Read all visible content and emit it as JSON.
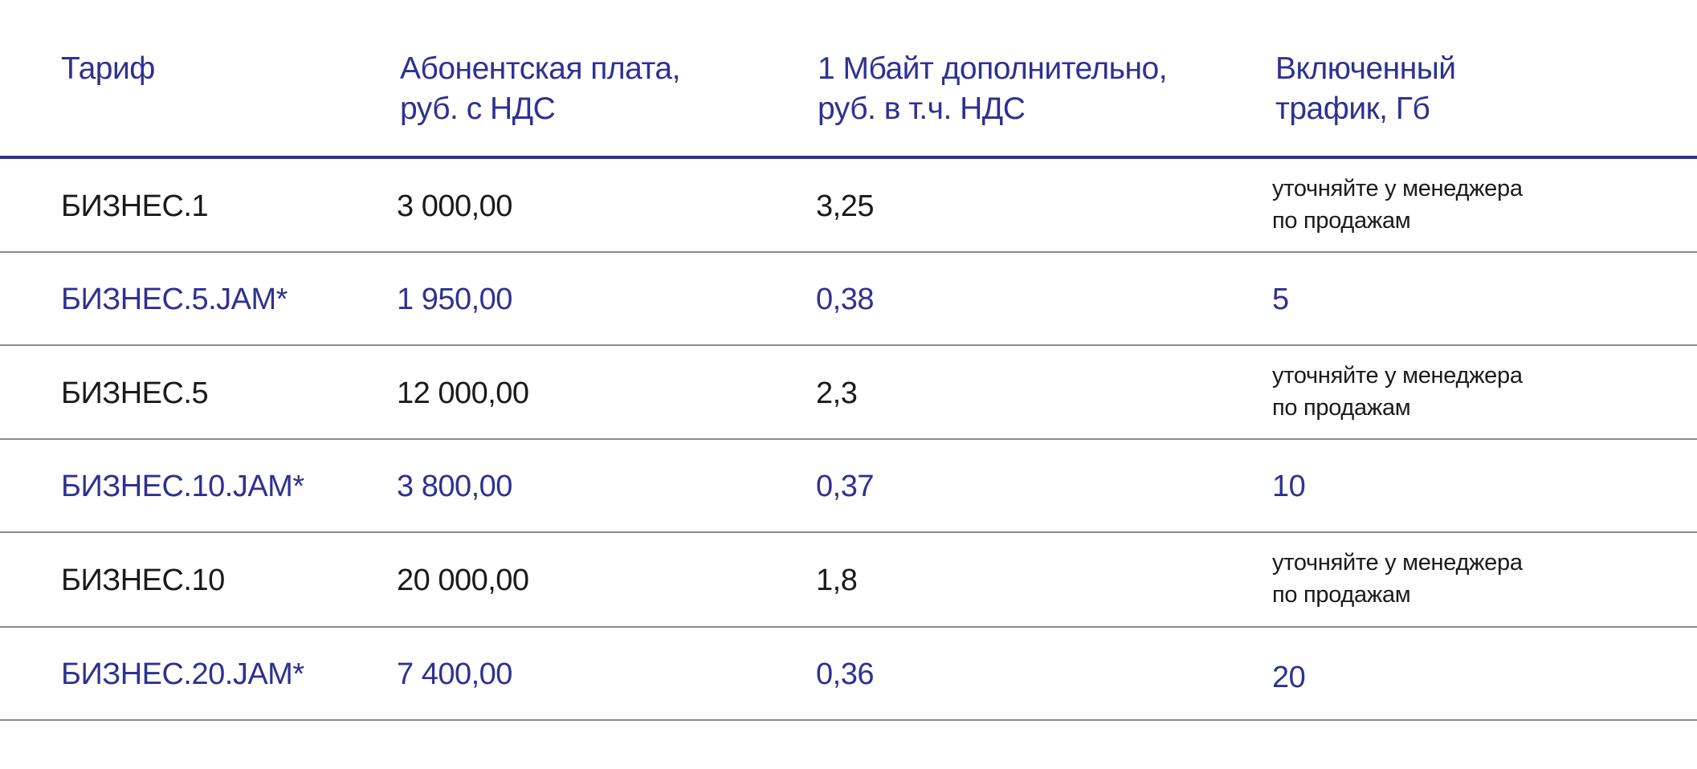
{
  "accent_color": "#2e3192",
  "text_color": "#1a1a1a",
  "divider_color": "#8a8a8a",
  "header": {
    "tariff": [
      "",
      "Тариф"
    ],
    "fee": [
      "Абонентская плата,",
      "руб. с НДС"
    ],
    "extra_mb": [
      "1 Мбайт дополнительно,",
      "руб. в т.ч. НДС"
    ],
    "traffic": [
      "Включенный",
      "трафик, Гб"
    ]
  },
  "rows": [
    {
      "tariff": "БИЗНЕС.1",
      "fee": "3 000,00",
      "extra_mb": "3,25",
      "traffic": [
        "уточняйте у менеджера",
        "по продажам"
      ],
      "style": "dark"
    },
    {
      "tariff": "БИЗНЕС.5.JAM*",
      "fee": "1 950,00",
      "extra_mb": "0,38",
      "traffic": [
        "5"
      ],
      "style": "blue"
    },
    {
      "tariff": "БИЗНЕС.5",
      "fee": "12 000,00",
      "extra_mb": "2,3",
      "traffic": [
        "уточняйте у менеджера",
        "по продажам"
      ],
      "style": "dark"
    },
    {
      "tariff": "БИЗНЕС.10.JAM*",
      "fee": "3 800,00",
      "extra_mb": "0,37",
      "traffic": [
        "10"
      ],
      "style": "blue"
    },
    {
      "tariff": "БИЗНЕС.10",
      "fee": "20 000,00",
      "extra_mb": "1,8",
      "traffic": [
        "уточняйте у менеджера",
        "по продажам"
      ],
      "style": "dark"
    },
    {
      "tariff": "БИЗНЕС.20.JAM*",
      "fee": "7 400,00",
      "extra_mb": "0,36",
      "traffic": [
        "20"
      ],
      "style": "blue"
    }
  ]
}
